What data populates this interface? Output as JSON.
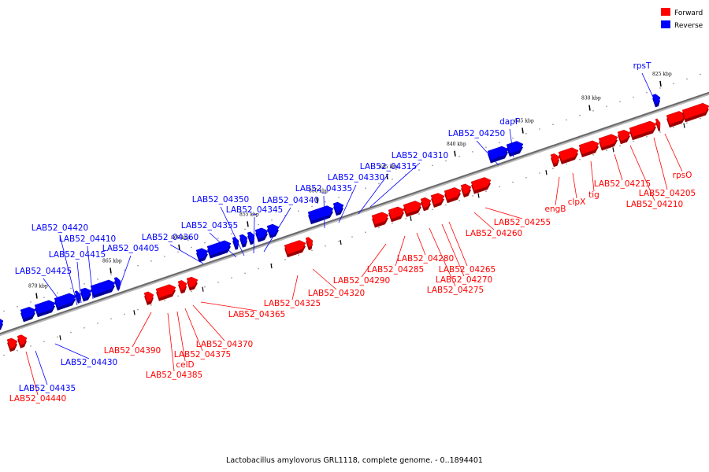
{
  "legend": {
    "forward": {
      "label": "Forward",
      "color": "#ff0000"
    },
    "reverse": {
      "label": "Reverse",
      "color": "#0000ff"
    }
  },
  "caption": "Lactobacillus amylovorus GRL1118, complete genome. - 0..1894401",
  "scale_labels": [
    "825 kbp",
    "830 kbp",
    "835 kbp",
    "840 kbp",
    "845 kbp",
    "850 kbp",
    "855 kbp",
    "860 kbp",
    "865 kbp",
    "870 kbp"
  ],
  "gene_labels": {
    "reverse": [
      "rpsT",
      "dapF",
      "LAB52_04250",
      "LAB52_04310",
      "LAB52_04315",
      "LAB52_04330",
      "LAB52_04335",
      "LAB52_04340",
      "LAB52_04345",
      "LAB52_04350",
      "LAB52_04355",
      "LAB52_04360",
      "LAB52_04405",
      "LAB52_04410",
      "LAB52_04415",
      "LAB52_04420",
      "LAB52_04425",
      "LAB52_04430",
      "LAB52_04435"
    ],
    "forward": [
      "rpsO",
      "LAB52_04205",
      "LAB52_04210",
      "LAB52_04215",
      "tig",
      "clpX",
      "engB",
      "LAB52_04255",
      "LAB52_04260",
      "LAB52_04265",
      "LAB52_04270",
      "LAB52_04275",
      "LAB52_04280",
      "LAB52_04285",
      "LAB52_04290",
      "LAB52_04320",
      "LAB52_04325",
      "LAB52_04365",
      "LAB52_04370",
      "LAB52_04375",
      "celD",
      "LAB52_04385",
      "LAB52_04390",
      "LAB52_04440"
    ]
  }
}
